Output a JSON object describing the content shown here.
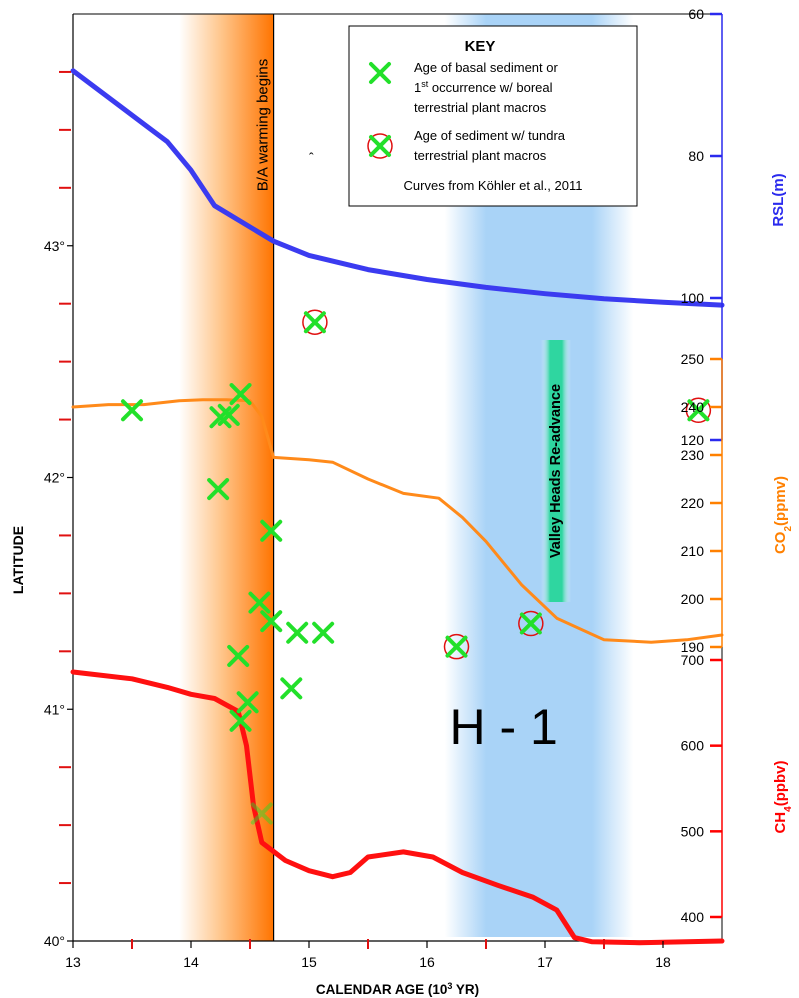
{
  "chart_data": {
    "type": "scatter",
    "title": "",
    "xlabel": "CALENDAR AGE (10",
    "xlabel_sup": "3",
    "xlabel_end": " YR)",
    "ylabel": "LATITUDE",
    "xlim": [
      13,
      18.5
    ],
    "ylim": [
      40,
      44
    ],
    "x_ticks": [
      "13",
      "14",
      "15",
      "16",
      "17",
      "18"
    ],
    "y_ticks": [
      {
        "value": 40,
        "label": "40°"
      },
      {
        "value": 41,
        "label": "41°"
      },
      {
        "value": 42,
        "label": "42°"
      },
      {
        "value": 43,
        "label": "43°"
      }
    ],
    "legend": {
      "title": "KEY",
      "placement": "top-right",
      "items": [
        {
          "marker": "x",
          "lines": [
            "Age of basal sediment or",
            "occurrence w/ boreal",
            "terrestrial plant macros"
          ],
          "sup": "1",
          "sup_rest": "st"
        },
        {
          "marker": "x-circle",
          "lines": [
            "Age of sediment w/ tundra",
            "terrestrial plant macros"
          ]
        }
      ],
      "note": "Curves from Köhler et al., 2011"
    },
    "bands": [
      {
        "label": "B/A warming begins",
        "x_from": 13.9,
        "x_to": 14.7,
        "color": "#ff7a00"
      },
      {
        "label": "Valley Heads Re-advance",
        "x_from": 16.15,
        "x_to": 17.75,
        "color": "#9ccbf5",
        "label_color": "#3ed9a0"
      }
    ],
    "annotations": [
      {
        "text": "H - 1",
        "x": 16.65,
        "y": 40.85
      },
      {
        "text": "ˆ",
        "x": 15.02,
        "y": 43.36
      }
    ],
    "series_points": [
      {
        "marker": "x",
        "points": [
          [
            13.5,
            42.29
          ],
          [
            14.25,
            42.26
          ],
          [
            14.32,
            42.27
          ],
          [
            14.42,
            42.36
          ],
          [
            14.23,
            41.95
          ],
          [
            14.68,
            41.77
          ],
          [
            14.58,
            41.46
          ],
          [
            14.68,
            41.38
          ],
          [
            14.9,
            41.33
          ],
          [
            15.12,
            41.33
          ],
          [
            14.4,
            41.23
          ],
          [
            14.85,
            41.09
          ],
          [
            14.48,
            41.03
          ],
          [
            14.42,
            40.95
          ],
          [
            14.6,
            40.55
          ]
        ]
      },
      {
        "marker": "x-circle",
        "points": [
          [
            15.05,
            42.67
          ],
          [
            18.3,
            42.29
          ],
          [
            16.25,
            41.27
          ],
          [
            16.88,
            41.37
          ]
        ]
      }
    ],
    "right_axes": [
      {
        "name": "RSL(m)",
        "color": "#2a2aee",
        "ticks": [
          "60",
          "80",
          "100",
          "120"
        ],
        "min": 60,
        "max": 120
      },
      {
        "name": "CO",
        "sub": "2",
        "name_end": "(ppmv)",
        "color": "#ff8000",
        "ticks": [
          "190",
          "200",
          "210",
          "220",
          "230",
          "240",
          "250"
        ],
        "min": 190,
        "max": 250
      },
      {
        "name": "CH",
        "sub": "4",
        "name_end": "(ppbv)",
        "color": "#ff0000",
        "ticks": [
          "400",
          "500",
          "600",
          "700"
        ],
        "min": 400,
        "max": 700
      }
    ],
    "curves": [
      {
        "name": "RSL",
        "axis": 0,
        "color": "#3b3bf0",
        "x": [
          13,
          13.4,
          13.8,
          14.0,
          14.2,
          14.5,
          14.7,
          15.0,
          15.5,
          16.0,
          16.5,
          17.0,
          17.5,
          18.0,
          18.5
        ],
        "y": [
          68,
          73,
          78,
          82,
          87,
          90,
          92,
          94,
          96,
          97.4,
          98.5,
          99.4,
          100.1,
          100.6,
          101
        ]
      },
      {
        "name": "CO2",
        "axis": 1,
        "color": "#ff8a1a",
        "x": [
          13,
          13.3,
          13.6,
          13.9,
          14.1,
          14.3,
          14.5,
          14.6,
          14.7,
          15.0,
          15.2,
          15.5,
          15.8,
          16.1,
          16.3,
          16.5,
          16.8,
          17.1,
          17.5,
          17.9,
          18.2,
          18.5
        ],
        "y": [
          240,
          240.5,
          240.5,
          241.3,
          241.5,
          241.5,
          241.3,
          238,
          229.5,
          229,
          228.5,
          225,
          222,
          221,
          217,
          212,
          203,
          196,
          191.5,
          191,
          191.5,
          192.5
        ]
      },
      {
        "name": "CH4",
        "axis": 2,
        "color": "#ff1010",
        "x": [
          13,
          13.5,
          13.8,
          14.0,
          14.2,
          14.4,
          14.47,
          14.53,
          14.6,
          14.8,
          15.0,
          15.2,
          15.35,
          15.5,
          15.8,
          16.05,
          16.3,
          16.6,
          16.9,
          17.1,
          17.25,
          17.4,
          17.8,
          18.2,
          18.5
        ],
        "y": [
          686,
          678,
          668,
          660,
          655,
          640,
          600,
          530,
          487,
          466,
          454,
          447,
          452,
          470,
          476,
          470,
          452,
          437,
          423,
          408,
          376,
          371,
          370,
          371,
          372
        ]
      }
    ]
  }
}
